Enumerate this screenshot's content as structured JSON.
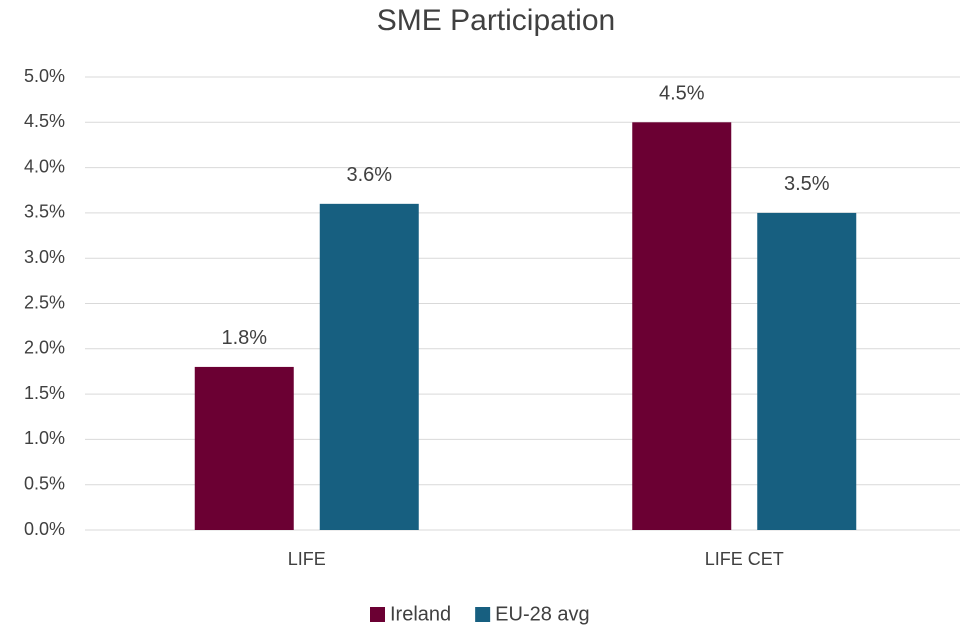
{
  "chart_data": {
    "type": "bar",
    "title": "SME Participation",
    "categories": [
      "LIFE",
      "LIFE CET"
    ],
    "series": [
      {
        "name": "Ireland",
        "color": "#6b0033",
        "values": [
          1.8,
          4.5
        ],
        "value_labels": [
          "1.8%",
          "4.5%"
        ]
      },
      {
        "name": "EU-28 avg",
        "color": "#175f80",
        "values": [
          3.6,
          3.5
        ],
        "value_labels": [
          "3.6%",
          "3.5%"
        ]
      }
    ],
    "ylim": [
      0,
      5
    ],
    "yticks": [
      {
        "value": 0,
        "label": "0.0%"
      },
      {
        "value": 0.5,
        "label": "0.5%"
      },
      {
        "value": 1,
        "label": "1.0%"
      },
      {
        "value": 1.5,
        "label": "1.5%"
      },
      {
        "value": 2,
        "label": "2.0%"
      },
      {
        "value": 2.5,
        "label": "2.5%"
      },
      {
        "value": 3,
        "label": "3.0%"
      },
      {
        "value": 3.5,
        "label": "3.5%"
      },
      {
        "value": 4,
        "label": "4.0%"
      },
      {
        "value": 4.5,
        "label": "4.5%"
      },
      {
        "value": 5,
        "label": "5.0%"
      }
    ],
    "grid": true,
    "legend": "bottom"
  }
}
